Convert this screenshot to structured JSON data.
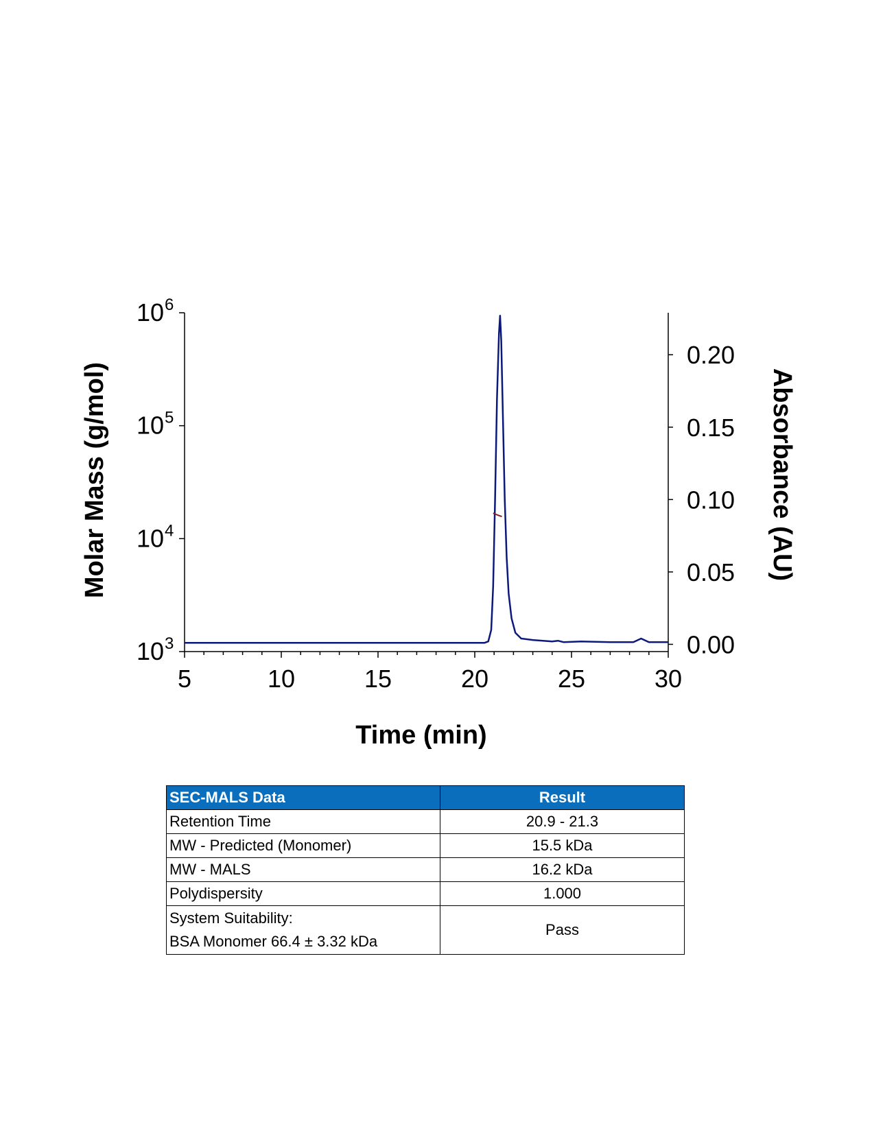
{
  "chart_data": {
    "type": "line",
    "title": "",
    "xlabel": "Time (min)",
    "ylabel_left": "Molar Mass (g/mol)",
    "ylabel_right": "Absorbance (AU)",
    "xlim": [
      5,
      30
    ],
    "xticks": [
      "5",
      "10",
      "15",
      "20",
      "25",
      "30"
    ],
    "ylim_left": [
      1000,
      1000000
    ],
    "yscale_left": "log",
    "yticks_left": [
      {
        "base": "10",
        "exp": "3"
      },
      {
        "base": "10",
        "exp": "4"
      },
      {
        "base": "10",
        "exp": "5"
      },
      {
        "base": "10",
        "exp": "6"
      }
    ],
    "ylim_right": [
      -0.005,
      0.229
    ],
    "yticks_right": [
      "0.00",
      "0.05",
      "0.10",
      "0.15",
      "0.20"
    ],
    "grid": false,
    "series": [
      {
        "axis": "right",
        "color": "#0b1a7a",
        "x": [
          5,
          20.5,
          20.7,
          20.85,
          20.95,
          21.05,
          21.15,
          21.25,
          21.31,
          21.37,
          21.45,
          21.55,
          21.65,
          21.75,
          21.9,
          22.1,
          22.4,
          23,
          24,
          24.3,
          24.6,
          25.5,
          27,
          28.2,
          28.6,
          29,
          30
        ],
        "y": [
          0.001,
          0.001,
          0.002,
          0.01,
          0.04,
          0.1,
          0.17,
          0.215,
          0.227,
          0.21,
          0.16,
          0.1,
          0.06,
          0.035,
          0.018,
          0.008,
          0.004,
          0.003,
          0.002,
          0.0025,
          0.0015,
          0.002,
          0.0015,
          0.0015,
          0.004,
          0.0015,
          0.0015
        ]
      },
      {
        "axis": "left",
        "color": "#8b1a1a",
        "x": [
          20.95,
          21.1,
          21.25,
          21.4
        ],
        "y": [
          16800,
          16400,
          16000,
          15700
        ]
      }
    ]
  },
  "table": {
    "headers": [
      "SEC-MALS Data",
      "Result"
    ],
    "header_color": "#0a6ebd",
    "rows": [
      {
        "label": "Retention Time",
        "value": "20.9 - 21.3"
      },
      {
        "label": "MW - Predicted (Monomer)",
        "value": "15.5 kDa"
      },
      {
        "label": "MW - MALS",
        "value": "16.2 kDa"
      },
      {
        "label": "Polydispersity",
        "value": "1.000"
      }
    ],
    "last_row": {
      "label_line1": "System Suitability:",
      "label_line2": "BSA Monomer 66.4 ± 3.32 kDa",
      "value": "Pass"
    }
  }
}
